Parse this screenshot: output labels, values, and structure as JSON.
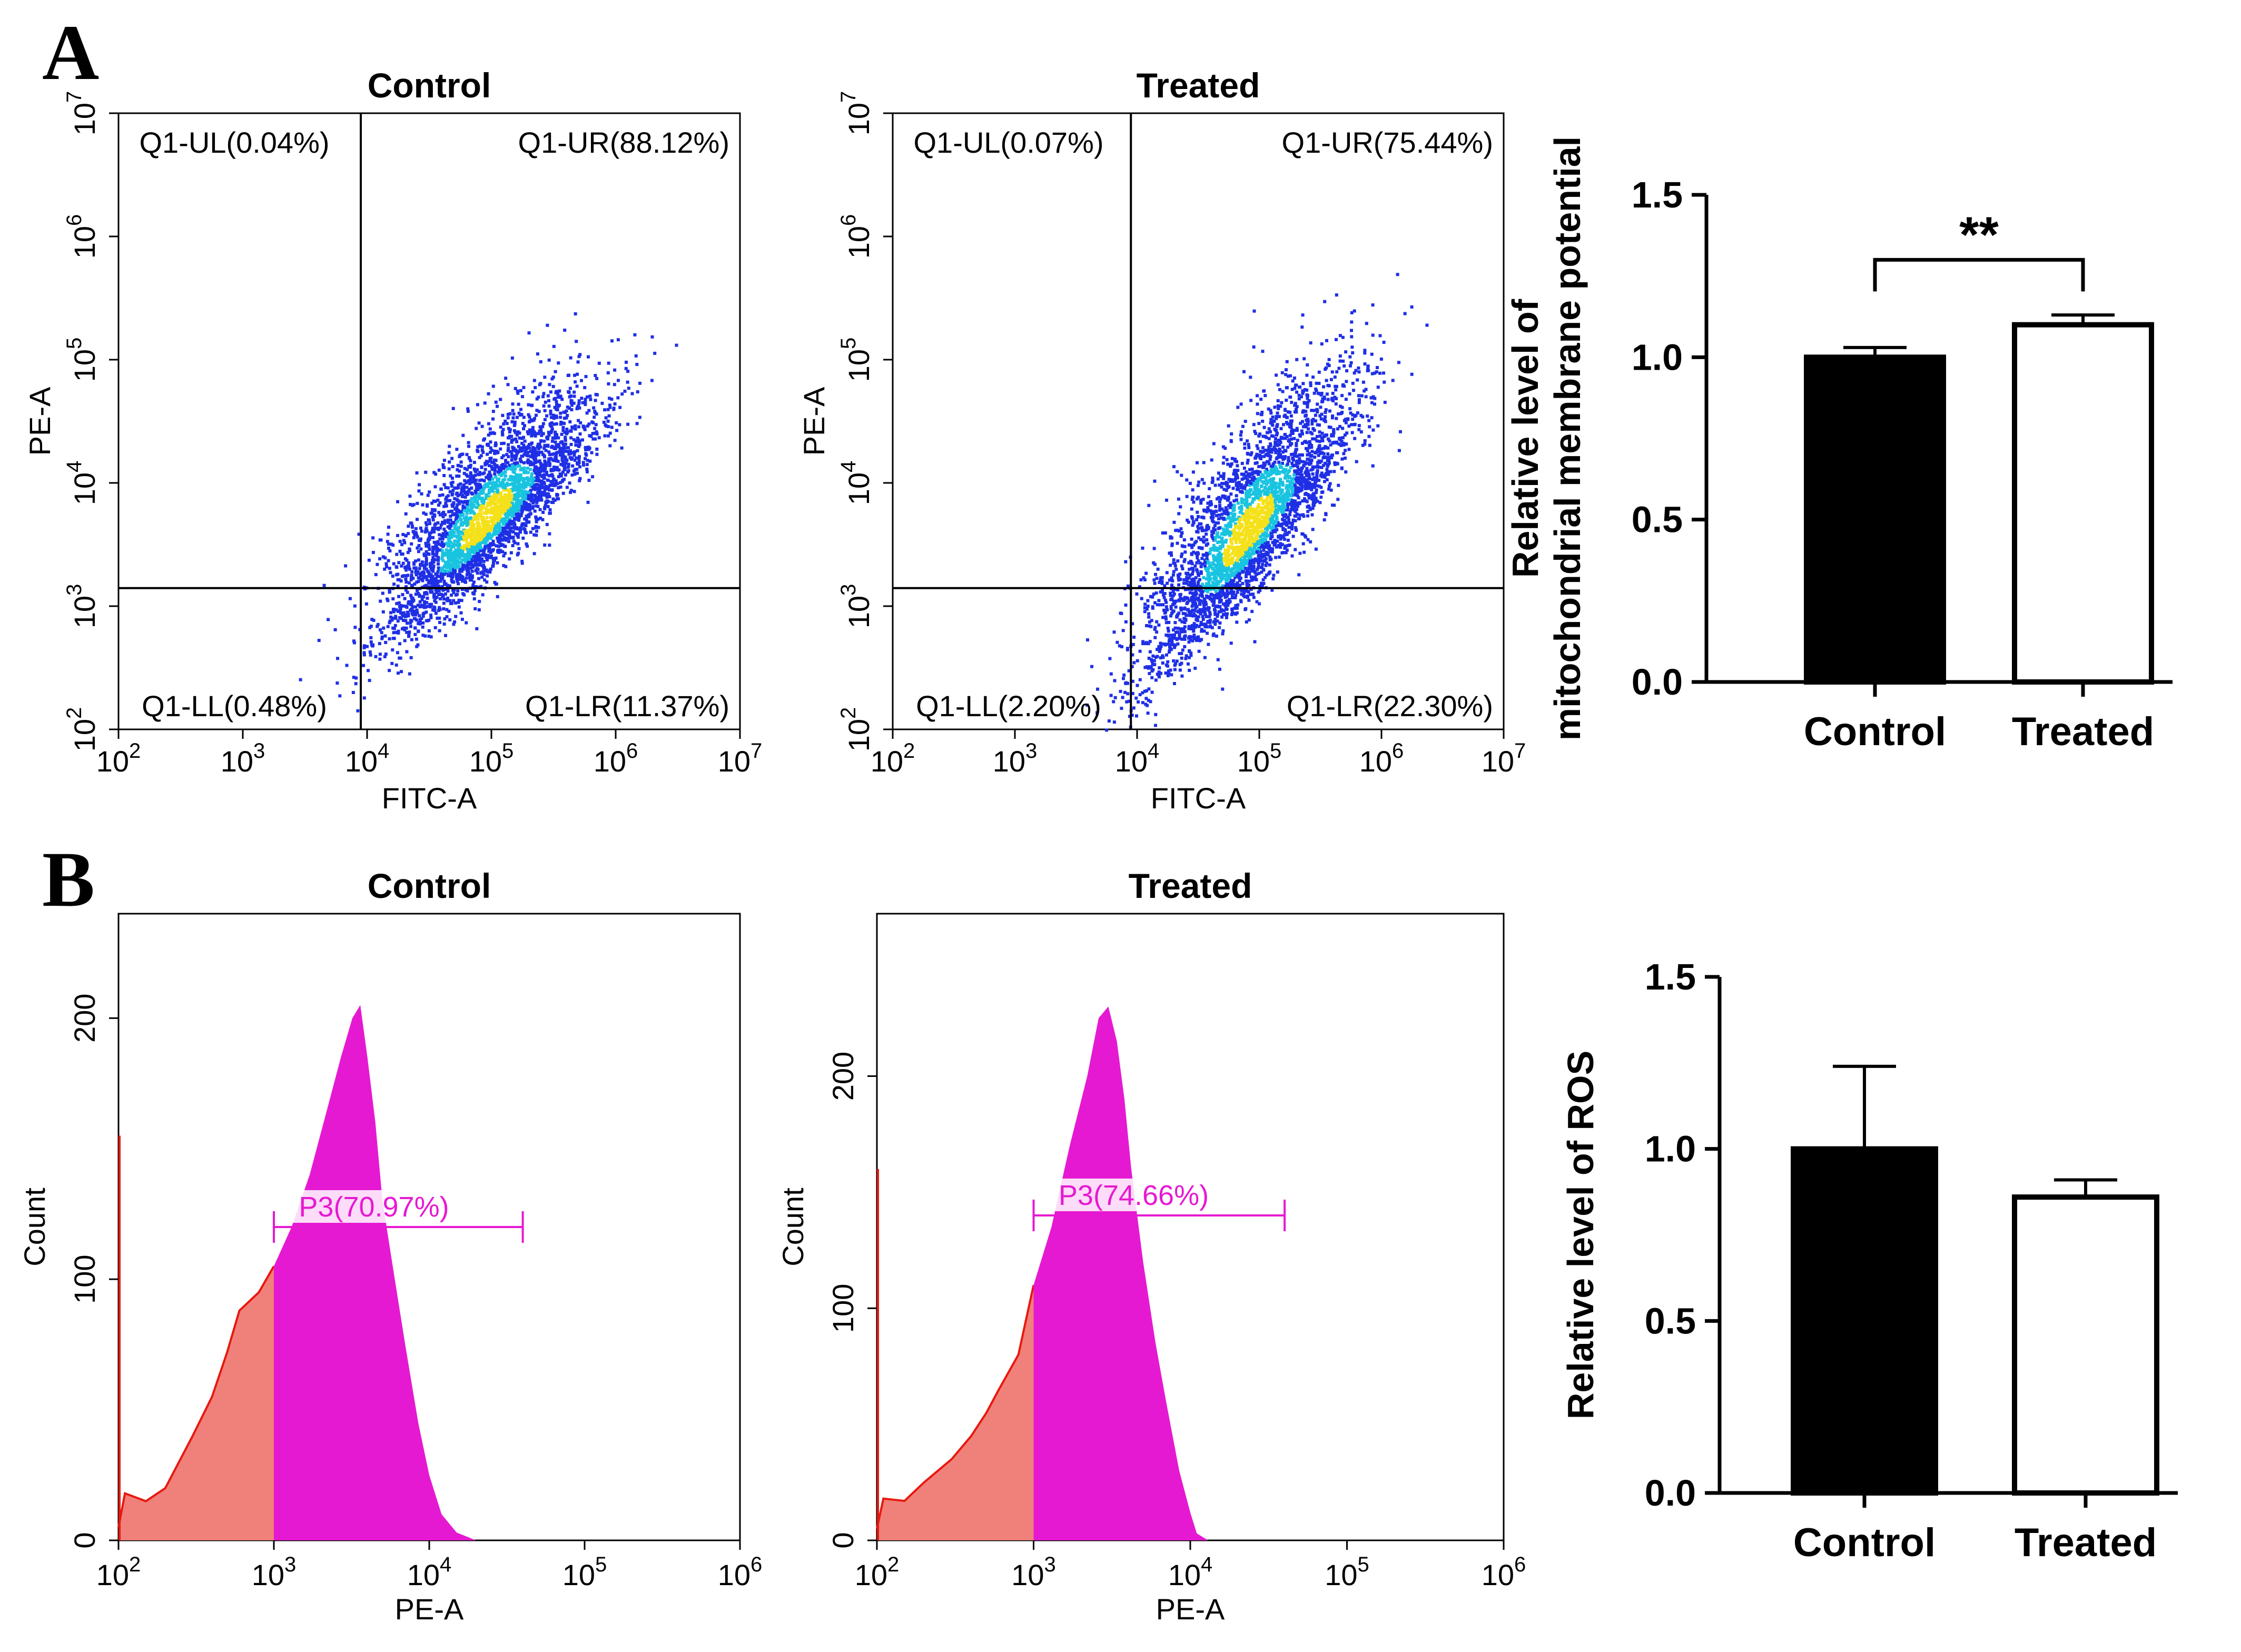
{
  "panels": {
    "a": "A",
    "b": "B"
  },
  "colors": {
    "density_low": "#1f2fe6",
    "density_mid": "#19c4e0",
    "density_high": "#f5e11b",
    "gated": "#e619d2",
    "ungated_fill": "#f0807a",
    "ungated_line": "#e8180e",
    "bar_dark": "#000000",
    "bar_light": "#ffffff"
  },
  "chart_data": [
    {
      "id": "a1",
      "type": "scatter",
      "title": "Control",
      "xlabel": "FITC-A",
      "ylabel": "PE-A",
      "xscale": "log",
      "yscale": "log",
      "xlim": [
        100,
        10000000
      ],
      "ylim": [
        100,
        10000000
      ],
      "x_ticks": [
        {
          "base": "10",
          "exp": "2"
        },
        {
          "base": "10",
          "exp": "3"
        },
        {
          "base": "10",
          "exp": "4"
        },
        {
          "base": "10",
          "exp": "5"
        },
        {
          "base": "10",
          "exp": "6"
        },
        {
          "base": "10",
          "exp": "7"
        }
      ],
      "y_ticks": [
        {
          "base": "10",
          "exp": "2"
        },
        {
          "base": "10",
          "exp": "3"
        },
        {
          "base": "10",
          "exp": "4"
        },
        {
          "base": "10",
          "exp": "5"
        },
        {
          "base": "10",
          "exp": "6"
        },
        {
          "base": "10",
          "exp": "7"
        }
      ],
      "gate_x": 8900,
      "gate_y": 1400,
      "quadrants": {
        "ul": "Q1-UL(0.04%)",
        "ur": "Q1-UR(88.12%)",
        "ll": "Q1-LL(0.48%)",
        "lr": "Q1-LR(11.37%)"
      },
      "cloud_center": [
        90000,
        5000
      ],
      "points_visible": "dense population mostly in upper-right quadrant"
    },
    {
      "id": "a2",
      "type": "scatter",
      "title": "Treated",
      "xlabel": "FITC-A",
      "ylabel": "PE-A",
      "xscale": "log",
      "yscale": "log",
      "xlim": [
        100,
        10000000
      ],
      "ylim": [
        100,
        10000000
      ],
      "x_ticks": [
        {
          "base": "10",
          "exp": "2"
        },
        {
          "base": "10",
          "exp": "3"
        },
        {
          "base": "10",
          "exp": "4"
        },
        {
          "base": "10",
          "exp": "5"
        },
        {
          "base": "10",
          "exp": "6"
        },
        {
          "base": "10",
          "exp": "7"
        }
      ],
      "y_ticks": [
        {
          "base": "10",
          "exp": "2"
        },
        {
          "base": "10",
          "exp": "3"
        },
        {
          "base": "10",
          "exp": "4"
        },
        {
          "base": "10",
          "exp": "5"
        },
        {
          "base": "10",
          "exp": "6"
        },
        {
          "base": "10",
          "exp": "7"
        }
      ],
      "gate_x": 8900,
      "gate_y": 1400,
      "quadrants": {
        "ul": "Q1-UL(0.07%)",
        "ur": "Q1-UR(75.44%)",
        "ll": "Q1-LL(2.20%)",
        "lr": "Q1-LR(22.30%)"
      },
      "cloud_center": [
        80000,
        4000
      ],
      "points_visible": "population spread across upper-right and lower-right quadrants"
    },
    {
      "id": "a3",
      "type": "bar",
      "categories": [
        "Control",
        "Treated"
      ],
      "values": [
        1.0,
        1.1
      ],
      "errors": [
        0.03,
        0.03
      ],
      "ylabel_line1": "Relative level of",
      "ylabel_line2": "mitochondrial membrane potential",
      "ylim": [
        0,
        1.5
      ],
      "yticks": [
        "0.0",
        "0.5",
        "1.0",
        "1.5"
      ],
      "significance": "**"
    },
    {
      "id": "b1",
      "type": "area",
      "title": "Control",
      "xlabel": "PE-A",
      "ylabel": "Count",
      "xscale": "log",
      "xlim": [
        100,
        1000000
      ],
      "ylim": [
        0,
        240
      ],
      "x_ticks": [
        {
          "base": "10",
          "exp": "2"
        },
        {
          "base": "10",
          "exp": "3"
        },
        {
          "base": "10",
          "exp": "4"
        },
        {
          "base": "10",
          "exp": "5"
        },
        {
          "base": "10",
          "exp": "6"
        }
      ],
      "y_ticks": [
        "0",
        "100",
        "200"
      ],
      "gate_label": "P3(70.97%)",
      "gate_range": [
        1000,
        40000
      ],
      "gate_level": 120,
      "x": [
        100,
        110,
        150,
        200,
        300,
        400,
        500,
        600,
        800,
        1000,
        1300,
        1700,
        2200,
        2700,
        3200,
        3600,
        4000,
        4500,
        5000,
        6000,
        7000,
        8500,
        10000,
        12000,
        15000,
        20000
      ],
      "y": [
        5,
        18,
        15,
        20,
        40,
        55,
        72,
        88,
        95,
        105,
        120,
        140,
        165,
        185,
        200,
        205,
        185,
        160,
        130,
        100,
        75,
        45,
        25,
        10,
        3,
        0
      ]
    },
    {
      "id": "b2",
      "type": "area",
      "title": "Treated",
      "xlabel": "PE-A",
      "ylabel": "Count",
      "xscale": "log",
      "xlim": [
        100,
        1000000
      ],
      "ylim": [
        0,
        270
      ],
      "x_ticks": [
        {
          "base": "10",
          "exp": "2"
        },
        {
          "base": "10",
          "exp": "3"
        },
        {
          "base": "10",
          "exp": "4"
        },
        {
          "base": "10",
          "exp": "5"
        },
        {
          "base": "10",
          "exp": "6"
        }
      ],
      "y_ticks": [
        "0",
        "100",
        "200"
      ],
      "gate_label": "P3(74.66%)",
      "gate_range": [
        1000,
        40000
      ],
      "gate_level": 140,
      "x": [
        100,
        110,
        150,
        200,
        300,
        400,
        500,
        600,
        800,
        1000,
        1300,
        1700,
        2200,
        2600,
        3000,
        3400,
        3800,
        4200,
        5000,
        6000,
        7000,
        8500,
        10000,
        11000,
        13000
      ],
      "y": [
        5,
        18,
        17,
        25,
        35,
        45,
        55,
        65,
        80,
        110,
        135,
        170,
        200,
        225,
        230,
        215,
        190,
        160,
        120,
        85,
        60,
        30,
        12,
        3,
        0
      ]
    },
    {
      "id": "b3",
      "type": "bar",
      "categories": [
        "Control",
        "Treated"
      ],
      "values": [
        1.0,
        0.86
      ],
      "errors": [
        0.24,
        0.05
      ],
      "ylabel": "Relative level of  ROS",
      "ylim": [
        0,
        1.5
      ],
      "yticks": [
        "0.0",
        "0.5",
        "1.0",
        "1.5"
      ]
    }
  ]
}
